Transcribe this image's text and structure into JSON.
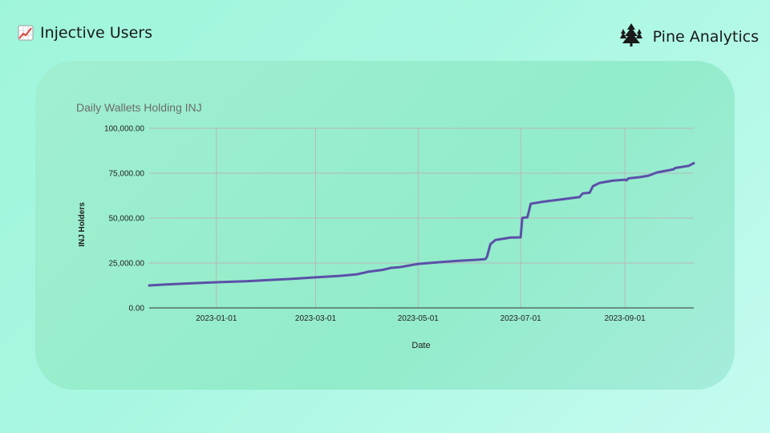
{
  "header": {
    "title": "Injective Users",
    "brand": "Pine Analytics"
  },
  "chart_data": {
    "type": "line",
    "title": "Daily Wallets Holding INJ",
    "xlabel": "Date",
    "ylabel": "INJ Holders",
    "x_ticks": [
      "2023-01-01",
      "2023-03-01",
      "2023-05-01",
      "2023-07-01",
      "2023-09-01"
    ],
    "y_ticks": [
      "0.00",
      "25,000.00",
      "50,000.00",
      "75,000.00",
      "100,000.00"
    ],
    "ylim": [
      0,
      100000
    ],
    "xlim": [
      "2022-11-22",
      "2023-10-12"
    ],
    "grid": true,
    "series": [
      {
        "color": "#5b4fa8",
        "x": [
          "2022-11-22",
          "2022-12-01",
          "2022-12-15",
          "2023-01-01",
          "2023-01-20",
          "2023-02-01",
          "2023-02-15",
          "2023-03-01",
          "2023-03-15",
          "2023-03-25",
          "2023-03-31",
          "2023-04-01",
          "2023-04-10",
          "2023-04-15",
          "2023-04-20",
          "2023-04-25",
          "2023-04-28",
          "2023-05-01",
          "2023-05-15",
          "2023-05-25",
          "2023-06-05",
          "2023-06-10",
          "2023-06-11",
          "2023-06-13",
          "2023-06-16",
          "2023-06-25",
          "2023-06-26",
          "2023-07-01",
          "2023-07-02",
          "2023-07-04",
          "2023-07-05",
          "2023-07-07",
          "2023-07-15",
          "2023-07-25",
          "2023-08-05",
          "2023-08-07",
          "2023-08-11",
          "2023-08-13",
          "2023-08-17",
          "2023-08-25",
          "2023-09-01",
          "2023-09-02",
          "2023-09-03",
          "2023-09-10",
          "2023-09-15",
          "2023-09-20",
          "2023-09-30",
          "2023-10-01",
          "2023-10-09",
          "2023-10-12"
        ],
        "y": [
          12500,
          13000,
          13600,
          14300,
          14900,
          15500,
          16200,
          17000,
          17800,
          18600,
          19800,
          20100,
          21200,
          22300,
          22700,
          23500,
          24000,
          24500,
          25600,
          26200,
          26800,
          27200,
          28500,
          35500,
          37800,
          39200,
          39200,
          39300,
          50100,
          50400,
          50400,
          58000,
          59200,
          60400,
          61700,
          63800,
          64100,
          67800,
          69600,
          70900,
          71400,
          71000,
          72100,
          72800,
          73600,
          75400,
          77200,
          77900,
          79100,
          80600
        ]
      }
    ]
  }
}
